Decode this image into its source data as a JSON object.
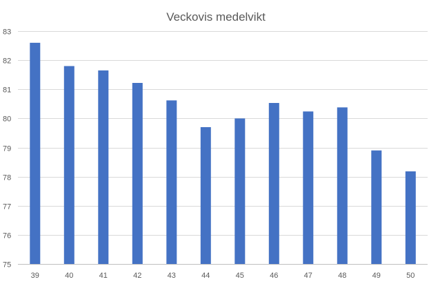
{
  "chart_data": {
    "type": "bar",
    "title": "Veckovis medelvikt",
    "xlabel": "",
    "ylabel": "",
    "categories": [
      "39",
      "40",
      "41",
      "42",
      "43",
      "44",
      "45",
      "46",
      "47",
      "48",
      "49",
      "50"
    ],
    "values": [
      82.6,
      81.8,
      81.65,
      81.22,
      80.62,
      79.7,
      80.0,
      80.53,
      80.24,
      80.38,
      78.9,
      78.18
    ],
    "ylim": [
      75,
      83
    ],
    "yticks": [
      "75",
      "76",
      "77",
      "78",
      "79",
      "80",
      "81",
      "82",
      "83"
    ],
    "grid": true,
    "legend": "none",
    "colors": {
      "bar": "#4472C4",
      "grid": "#D9D9D9",
      "axis": "#BFBFBF",
      "text": "#595959"
    }
  }
}
